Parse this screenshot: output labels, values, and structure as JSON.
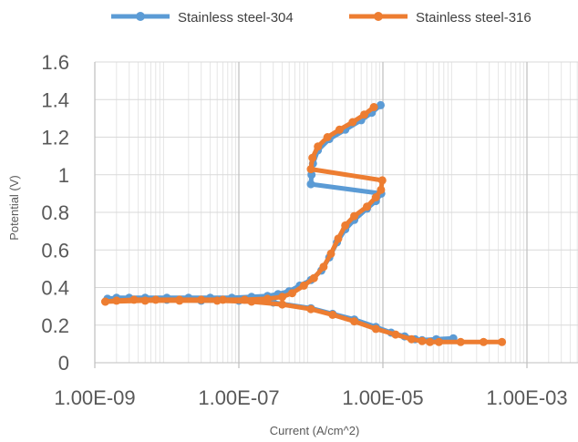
{
  "chart_data": {
    "type": "scatter",
    "x_scale": "log",
    "xlabel": "Current (A/cm^2)",
    "ylabel": "Potential (V)",
    "xlim": [
      1e-09,
      0.001
    ],
    "ylim": [
      0,
      1.6
    ],
    "x_ticks": [
      1e-09,
      1e-07,
      1e-05,
      0.001
    ],
    "x_tick_labels": [
      "1.00E-09",
      "1.00E-07",
      "1.00E-05",
      "1.00E-03"
    ],
    "y_ticks": [
      0,
      0.2,
      0.4,
      0.6,
      0.8,
      1,
      1.2,
      1.4,
      1.6
    ],
    "y_tick_labels": [
      "0",
      "0.2",
      "0.4",
      "0.6",
      "0.8",
      "1",
      "1.2",
      "1.4",
      "1.6"
    ],
    "grid": true,
    "legend_position": "top",
    "series": [
      {
        "name": "Stainless steel-304",
        "color": "#5B9BD5",
        "points": [
          [
            9.3e-06,
            1.37
          ],
          [
            7e-06,
            1.33
          ],
          [
            5e-06,
            1.29
          ],
          [
            3e-06,
            1.24
          ],
          [
            1.8e-06,
            1.19
          ],
          [
            1.25e-06,
            1.13
          ],
          [
            1.07e-06,
            1.06
          ],
          [
            1.02e-06,
            1.0
          ],
          [
            1e-06,
            0.95
          ],
          [
            9.5e-06,
            0.9
          ],
          [
            8e-06,
            0.86
          ],
          [
            6e-06,
            0.82
          ],
          [
            4e-06,
            0.76
          ],
          [
            3e-06,
            0.71
          ],
          [
            2.3e-06,
            0.64
          ],
          [
            1.8e-06,
            0.56
          ],
          [
            1.4e-06,
            0.49
          ],
          [
            1e-06,
            0.44
          ],
          [
            7e-07,
            0.41
          ],
          [
            5e-07,
            0.38
          ],
          [
            3.5e-07,
            0.365
          ],
          [
            2.5e-07,
            0.355
          ],
          [
            1.5e-07,
            0.35
          ],
          [
            8e-08,
            0.345
          ],
          [
            4e-08,
            0.345
          ],
          [
            2e-08,
            0.345
          ],
          [
            1e-08,
            0.345
          ],
          [
            5e-09,
            0.345
          ],
          [
            3e-09,
            0.345
          ],
          [
            2e-09,
            0.345
          ],
          [
            1.5e-09,
            0.34
          ]
        ],
        "cathodic_points": [
          [
            1.5e-09,
            0.34
          ],
          [
            5e-09,
            0.34
          ],
          [
            1e-08,
            0.335
          ],
          [
            3e-08,
            0.33
          ],
          [
            1e-07,
            0.33
          ],
          [
            3e-07,
            0.32
          ],
          [
            1e-06,
            0.29
          ],
          [
            2e-06,
            0.26
          ],
          [
            4e-06,
            0.23
          ],
          [
            8e-06,
            0.19
          ],
          [
            1.3e-05,
            0.16
          ],
          [
            2e-05,
            0.14
          ],
          [
            2.8e-05,
            0.125
          ],
          [
            3.5e-05,
            0.12
          ],
          [
            5.5e-05,
            0.125
          ],
          [
            9.5e-05,
            0.13
          ]
        ]
      },
      {
        "name": "Stainless steel-316",
        "color": "#ED7D31",
        "points": [
          [
            7.5e-06,
            1.36
          ],
          [
            5.5e-06,
            1.32
          ],
          [
            3.8e-06,
            1.28
          ],
          [
            2.5e-06,
            1.24
          ],
          [
            1.7e-06,
            1.2
          ],
          [
            1.25e-06,
            1.15
          ],
          [
            1.05e-06,
            1.09
          ],
          [
            1e-06,
            1.03
          ],
          [
            9.8e-06,
            0.97
          ],
          [
            9.4e-06,
            0.92
          ],
          [
            8e-06,
            0.88
          ],
          [
            6e-06,
            0.83
          ],
          [
            4e-06,
            0.78
          ],
          [
            3e-06,
            0.73
          ],
          [
            2.4e-06,
            0.66
          ],
          [
            1.9e-06,
            0.58
          ],
          [
            1.5e-06,
            0.51
          ],
          [
            1.1e-06,
            0.45
          ],
          [
            8e-07,
            0.41
          ],
          [
            5.5e-07,
            0.37
          ],
          [
            4e-07,
            0.35
          ],
          [
            2.5e-07,
            0.34
          ],
          [
            1.2e-07,
            0.335
          ],
          [
            6e-08,
            0.335
          ],
          [
            3e-08,
            0.335
          ],
          [
            1.5e-08,
            0.335
          ],
          [
            7e-09,
            0.335
          ],
          [
            3.5e-09,
            0.335
          ],
          [
            2e-09,
            0.33
          ],
          [
            1.4e-09,
            0.325
          ]
        ],
        "cathodic_points": [
          [
            1.4e-09,
            0.325
          ],
          [
            5e-09,
            0.33
          ],
          [
            1.5e-08,
            0.33
          ],
          [
            5e-08,
            0.33
          ],
          [
            1.5e-07,
            0.325
          ],
          [
            4e-07,
            0.31
          ],
          [
            1e-06,
            0.285
          ],
          [
            2e-06,
            0.255
          ],
          [
            4e-06,
            0.22
          ],
          [
            8e-06,
            0.18
          ],
          [
            1.5e-05,
            0.15
          ],
          [
            2.5e-05,
            0.125
          ],
          [
            3.5e-05,
            0.115
          ],
          [
            4.5e-05,
            0.11
          ],
          [
            6e-05,
            0.11
          ],
          [
            0.00012,
            0.11
          ],
          [
            0.00025,
            0.11
          ],
          [
            0.00045,
            0.11
          ]
        ]
      }
    ]
  }
}
